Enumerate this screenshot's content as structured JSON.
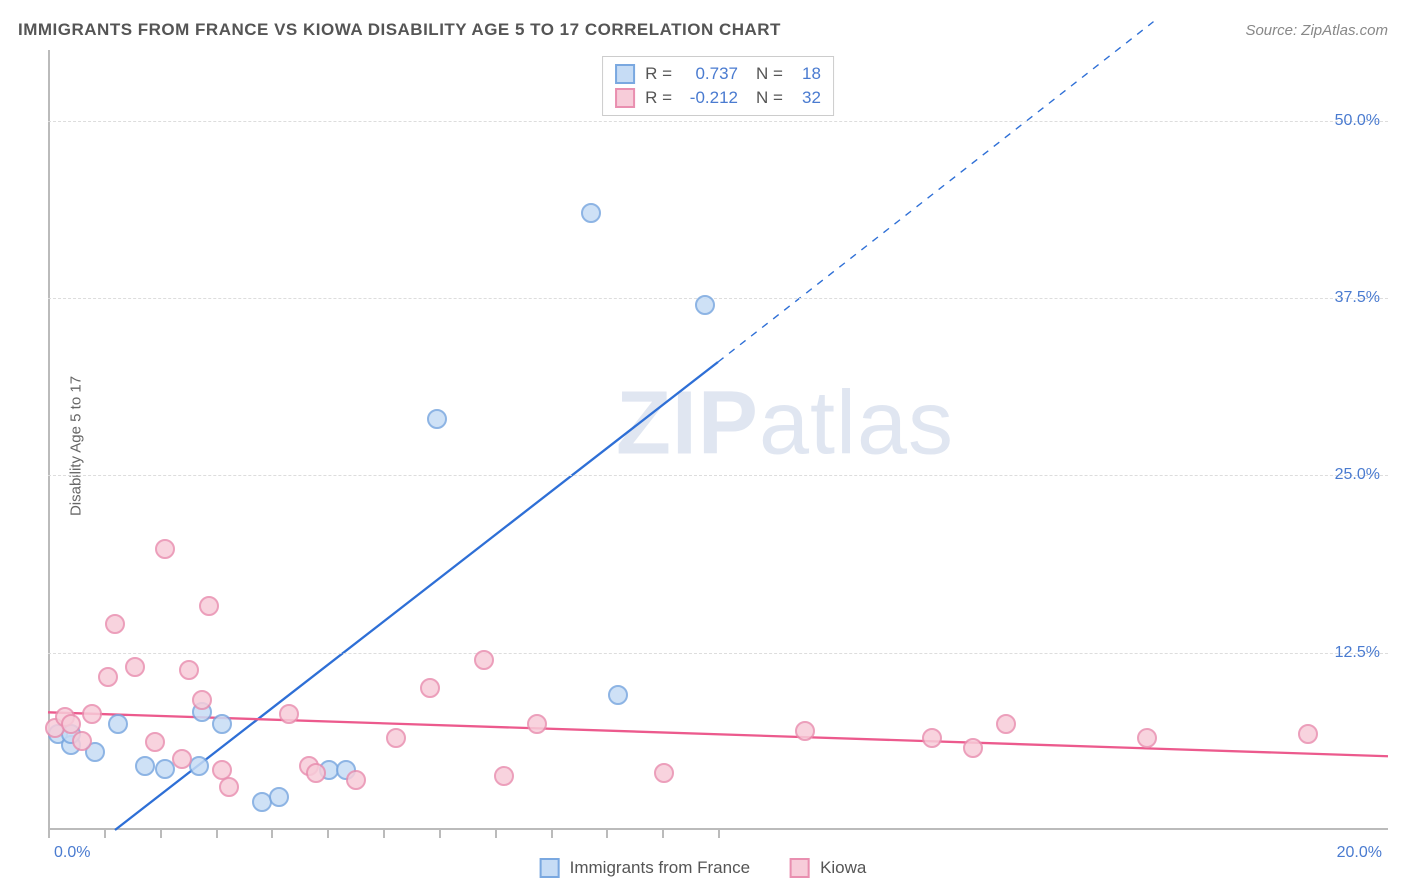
{
  "title": "IMMIGRANTS FROM FRANCE VS KIOWA DISABILITY AGE 5 TO 17 CORRELATION CHART",
  "source": "Source: ZipAtlas.com",
  "ylabel": "Disability Age 5 to 17",
  "watermark_bold": "ZIP",
  "watermark_light": "atlas",
  "chart": {
    "type": "scatter",
    "xlim": [
      0,
      20
    ],
    "ylim": [
      0,
      55
    ],
    "xlabel_min": "0.0%",
    "xlabel_max": "20.0%",
    "yticks": [
      {
        "v": 12.5,
        "label": "12.5%"
      },
      {
        "v": 25.0,
        "label": "25.0%"
      },
      {
        "v": 37.5,
        "label": "37.5%"
      },
      {
        "v": 50.0,
        "label": "50.0%"
      }
    ],
    "xtick_positions": [
      0,
      0.83,
      1.67,
      2.5,
      3.33,
      4.17,
      5.0,
      5.83,
      6.67,
      7.5,
      8.33,
      9.17,
      10.0
    ],
    "point_radius": 10,
    "point_border_width": 2,
    "grid_color": "#dddddd",
    "axis_color": "#bbbbbb",
    "tick_label_color": "#4a7bd0",
    "series": [
      {
        "name": "Immigrants from France",
        "fill": "#c6dcf5",
        "stroke": "#7aa8e0",
        "r_label": "R =",
        "r_value": "0.737",
        "n_label": "N =",
        "n_value": "18",
        "trend": {
          "color": "#2e6fd6",
          "width": 2.3,
          "x1": 1.0,
          "y1": 0,
          "x2": 10.0,
          "y2": 33.0,
          "dash_x2": 16.5,
          "dash_y2": 57.0
        },
        "points": [
          {
            "x": 0.15,
            "y": 6.8
          },
          {
            "x": 0.35,
            "y": 6.0
          },
          {
            "x": 0.35,
            "y": 6.8
          },
          {
            "x": 0.7,
            "y": 5.5
          },
          {
            "x": 1.05,
            "y": 7.5
          },
          {
            "x": 1.45,
            "y": 4.5
          },
          {
            "x": 1.75,
            "y": 4.3
          },
          {
            "x": 2.25,
            "y": 4.5
          },
          {
            "x": 2.3,
            "y": 8.3
          },
          {
            "x": 2.6,
            "y": 7.5
          },
          {
            "x": 3.2,
            "y": 2.0
          },
          {
            "x": 3.45,
            "y": 2.3
          },
          {
            "x": 4.2,
            "y": 4.2
          },
          {
            "x": 4.45,
            "y": 4.2
          },
          {
            "x": 5.8,
            "y": 29.0
          },
          {
            "x": 8.1,
            "y": 43.5
          },
          {
            "x": 8.5,
            "y": 9.5
          },
          {
            "x": 9.8,
            "y": 37.0
          }
        ]
      },
      {
        "name": "Kiowa",
        "fill": "#f7ccd9",
        "stroke": "#e98fb0",
        "r_label": "R =",
        "r_value": "-0.212",
        "n_label": "N =",
        "n_value": "32",
        "trend": {
          "color": "#ec5a8d",
          "width": 2.3,
          "x1": 0,
          "y1": 8.3,
          "x2": 20.0,
          "y2": 5.2
        },
        "points": [
          {
            "x": 0.1,
            "y": 7.2
          },
          {
            "x": 0.25,
            "y": 8.0
          },
          {
            "x": 0.35,
            "y": 7.5
          },
          {
            "x": 0.5,
            "y": 6.3
          },
          {
            "x": 0.65,
            "y": 8.2
          },
          {
            "x": 0.9,
            "y": 10.8
          },
          {
            "x": 1.0,
            "y": 14.5
          },
          {
            "x": 1.3,
            "y": 11.5
          },
          {
            "x": 1.6,
            "y": 6.2
          },
          {
            "x": 1.75,
            "y": 19.8
          },
          {
            "x": 2.0,
            "y": 5.0
          },
          {
            "x": 2.1,
            "y": 11.3
          },
          {
            "x": 2.3,
            "y": 9.2
          },
          {
            "x": 2.4,
            "y": 15.8
          },
          {
            "x": 2.6,
            "y": 4.2
          },
          {
            "x": 2.7,
            "y": 3.0
          },
          {
            "x": 3.6,
            "y": 8.2
          },
          {
            "x": 3.9,
            "y": 4.5
          },
          {
            "x": 4.0,
            "y": 4.0
          },
          {
            "x": 4.6,
            "y": 3.5
          },
          {
            "x": 5.2,
            "y": 6.5
          },
          {
            "x": 5.7,
            "y": 10.0
          },
          {
            "x": 6.5,
            "y": 12.0
          },
          {
            "x": 6.8,
            "y": 3.8
          },
          {
            "x": 7.3,
            "y": 7.5
          },
          {
            "x": 9.2,
            "y": 4.0
          },
          {
            "x": 11.3,
            "y": 7.0
          },
          {
            "x": 13.2,
            "y": 6.5
          },
          {
            "x": 13.8,
            "y": 5.8
          },
          {
            "x": 14.3,
            "y": 7.5
          },
          {
            "x": 16.4,
            "y": 6.5
          },
          {
            "x": 18.8,
            "y": 6.8
          }
        ]
      }
    ]
  },
  "bottom_legend": [
    {
      "label": "Immigrants from France",
      "fill": "#c6dcf5",
      "stroke": "#7aa8e0"
    },
    {
      "label": "Kiowa",
      "fill": "#f7ccd9",
      "stroke": "#e98fb0"
    }
  ]
}
